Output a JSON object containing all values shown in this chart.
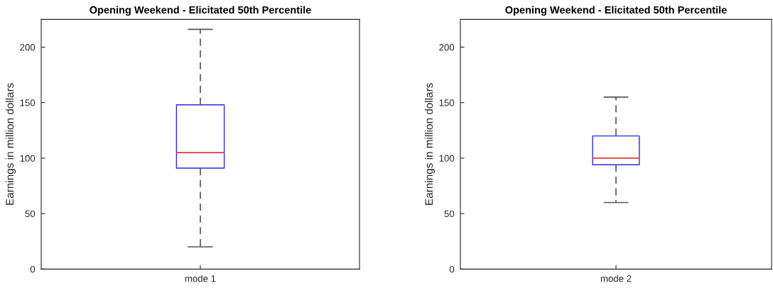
{
  "chart_data": [
    {
      "type": "box",
      "title": "Opening Weekend - Elicitated 50th Percentile",
      "ylabel": "Earnings in million dollars",
      "categories": [
        "mode 1"
      ],
      "boxes": [
        {
          "low": 20,
          "q1": 91,
          "median": 105,
          "q3": 148,
          "high": 216
        }
      ],
      "ylim": [
        0,
        225
      ],
      "yticks": [
        0,
        50,
        100,
        150,
        200
      ]
    },
    {
      "type": "box",
      "title": "Opening Weekend - Elicitated 50th Percentile",
      "ylabel": "Earnings in million dollars",
      "categories": [
        "mode 2"
      ],
      "boxes": [
        {
          "low": 60,
          "q1": 94,
          "median": 100,
          "q3": 120,
          "high": 155
        }
      ],
      "ylim": [
        0,
        225
      ],
      "yticks": [
        0,
        50,
        100,
        150,
        200
      ]
    }
  ]
}
